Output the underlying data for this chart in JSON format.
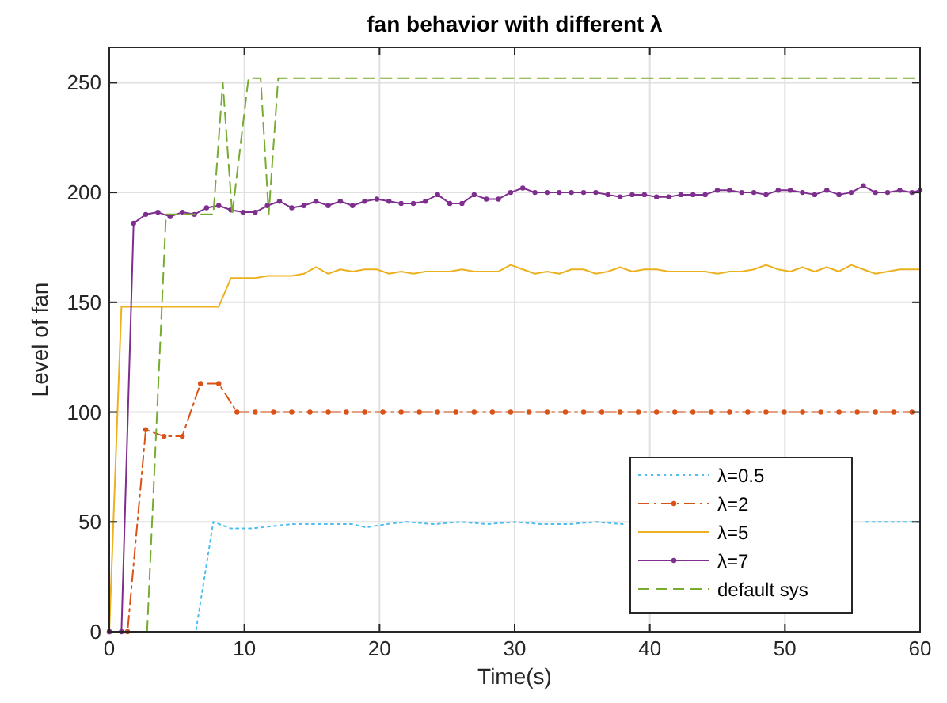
{
  "chart_data": {
    "type": "line",
    "title": "fan behavior with different λ",
    "xlabel": "Time(s)",
    "ylabel": "Level of fan",
    "x": [
      0,
      0.9,
      1.8,
      2.7,
      3.6,
      4.5,
      5.4,
      6.3,
      7.2,
      8.1,
      9,
      9.9,
      10.8,
      11.7,
      12.6,
      13.5,
      14.4,
      15.3,
      16.2,
      17.1,
      18,
      18.9,
      19.8,
      20.7,
      21.6,
      22.5,
      23.4,
      24.3,
      25.2,
      26.1,
      27,
      27.9,
      28.8,
      29.7,
      30.6,
      31.5,
      32.4,
      33.3,
      34.2,
      35.1,
      36,
      36.9,
      37.8,
      38.7,
      39.6,
      40.5,
      41.4,
      42.3,
      43.2,
      44.1,
      45,
      45.9,
      46.8,
      47.7,
      48.6,
      49.5,
      50.4,
      51.3,
      52.2,
      53.1,
      54,
      54.9,
      55.8,
      56.7,
      57.6,
      58.5,
      59.4,
      60
    ],
    "xlim": [
      0,
      60
    ],
    "xticks": [
      0,
      10,
      20,
      30,
      40,
      50,
      60
    ],
    "ylim": [
      0,
      266
    ],
    "yticks": [
      0,
      50,
      100,
      150,
      200,
      250
    ],
    "grid": true,
    "legend": "bottom right",
    "series": [
      {
        "name": "λ=0.5",
        "color": "#4dbeee",
        "line_style": "dotted",
        "marker": "none",
        "x": [
          0,
          6.4,
          7.7,
          9,
          10.5,
          12,
          13.5,
          15,
          16.5,
          18,
          19,
          20.5,
          22,
          24,
          26,
          28,
          30,
          32,
          34,
          36,
          38,
          40,
          42,
          44,
          46,
          48,
          50,
          52,
          54,
          56,
          58,
          60
        ],
        "values": [
          0,
          0,
          50,
          47,
          47,
          48,
          49,
          49,
          49,
          49,
          47.5,
          49,
          50,
          49,
          50,
          49,
          50,
          49,
          49,
          50,
          49,
          null,
          null,
          null,
          null,
          null,
          null,
          null,
          null,
          50,
          50,
          50
        ]
      },
      {
        "name": "λ=2",
        "color": "#d95319",
        "line_style": "dashdot",
        "marker": "circle",
        "x": [
          0,
          1.35,
          2.7,
          4.05,
          5.4,
          6.75,
          8.1,
          9.45,
          10.8,
          12.15,
          13.5,
          14.85,
          16.2,
          17.55,
          18.9,
          20.25,
          21.6,
          22.95,
          24.3,
          25.65,
          27,
          28.35,
          29.7,
          31.05,
          32.4,
          33.75,
          35.1,
          36.45,
          37.8,
          39.15,
          40.5,
          41.85,
          43.2,
          44.55,
          45.9,
          47.25,
          48.6,
          49.95,
          51.3,
          52.65,
          54,
          55.35,
          56.7,
          58.05,
          59.4
        ],
        "values": [
          0,
          0,
          92,
          89,
          89,
          113,
          113,
          100,
          100,
          100,
          100,
          100,
          100,
          100,
          100,
          100,
          100,
          100,
          100,
          100,
          100,
          100,
          100,
          100,
          100,
          100,
          100,
          100,
          100,
          100,
          100,
          100,
          100,
          100,
          100,
          100,
          100,
          100,
          100,
          100,
          100,
          100,
          100,
          100,
          100
        ]
      },
      {
        "name": "λ=5",
        "color": "#edb120",
        "line_style": "solid",
        "marker": "none",
        "values": [
          0,
          148,
          148,
          148,
          148,
          148,
          148,
          148,
          148,
          148,
          161,
          161,
          161,
          162,
          162,
          162,
          163,
          166,
          163,
          165,
          164,
          165,
          165,
          163,
          164,
          163,
          164,
          164,
          164,
          165,
          164,
          164,
          164,
          167,
          165,
          163,
          164,
          163,
          165,
          165,
          163,
          164,
          166,
          164,
          165,
          165,
          164,
          164,
          164,
          164,
          163,
          164,
          164,
          165,
          167,
          165,
          164,
          166,
          164,
          166,
          164,
          167,
          165,
          163,
          164,
          165,
          165,
          165
        ]
      },
      {
        "name": "λ=7",
        "color": "#7e2f8e",
        "line_style": "solid",
        "marker": "circle",
        "values": [
          0,
          0,
          186,
          190,
          191,
          189,
          191,
          190,
          193,
          194,
          192,
          191,
          191,
          194,
          196,
          193,
          194,
          196,
          194,
          196,
          194,
          196,
          197,
          196,
          195,
          195,
          196,
          199,
          195,
          195,
          199,
          197,
          197,
          200,
          202,
          200,
          200,
          200,
          200,
          200,
          200,
          199,
          198,
          199,
          199,
          198,
          198,
          199,
          199,
          199,
          201,
          201,
          200,
          200,
          199,
          201,
          201,
          200,
          199,
          201,
          199,
          200,
          203,
          200,
          200,
          201,
          200,
          201
        ]
      },
      {
        "name": "default sys",
        "color": "#77ac30",
        "line_style": "dashed",
        "marker": "none",
        "x": [
          2.8,
          4.2,
          7.7,
          8.4,
          9.1,
          10.3,
          11.2,
          11.8,
          12.5,
          60
        ],
        "values": [
          0,
          190,
          190,
          250,
          190,
          252,
          252,
          190,
          252,
          252
        ]
      }
    ]
  }
}
